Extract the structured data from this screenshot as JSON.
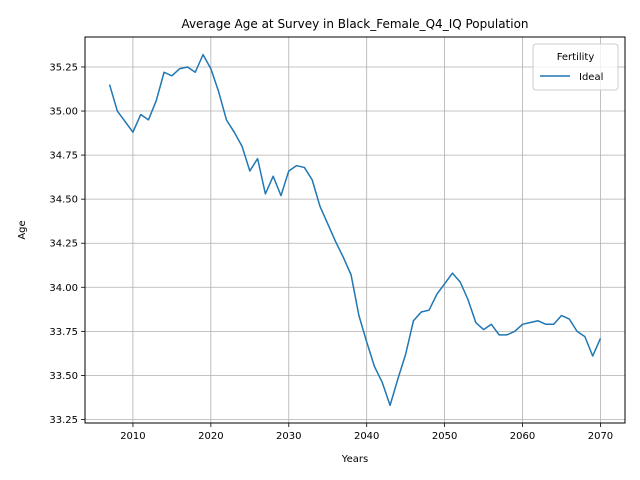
{
  "chart_data": {
    "type": "line",
    "title": "Average Age at Survey in Black_Female_Q4_IQ Population",
    "xlabel": "Years",
    "ylabel": "Age",
    "xlim": [
      2003.85,
      2073.15
    ],
    "ylim": [
      33.23,
      35.42
    ],
    "x_ticks": [
      2010,
      2020,
      2030,
      2040,
      2050,
      2060,
      2070
    ],
    "x_tick_labels": [
      "2010",
      "2020",
      "2030",
      "2040",
      "2050",
      "2060",
      "2070"
    ],
    "y_ticks": [
      33.25,
      33.5,
      33.75,
      34.0,
      34.25,
      34.5,
      34.75,
      35.0,
      35.25
    ],
    "y_tick_labels": [
      "33.25",
      "33.50",
      "33.75",
      "34.00",
      "34.25",
      "34.50",
      "34.75",
      "35.00",
      "35.25"
    ],
    "grid": true,
    "legend": {
      "title": "Fertility",
      "placement": "top-right"
    },
    "series": [
      {
        "name": "Ideal",
        "color": "#1f77b4",
        "x": [
          2007,
          2008,
          2009,
          2010,
          2011,
          2012,
          2013,
          2014,
          2015,
          2016,
          2017,
          2018,
          2019,
          2020,
          2021,
          2022,
          2023,
          2024,
          2025,
          2026,
          2027,
          2028,
          2029,
          2030,
          2031,
          2032,
          2033,
          2034,
          2035,
          2036,
          2037,
          2038,
          2039,
          2040,
          2041,
          2042,
          2043,
          2044,
          2045,
          2046,
          2047,
          2048,
          2049,
          2050,
          2051,
          2052,
          2053,
          2054,
          2055,
          2056,
          2057,
          2058,
          2059,
          2060,
          2061,
          2062,
          2063,
          2064,
          2065,
          2066,
          2067,
          2068,
          2069,
          2070
        ],
        "values": [
          35.15,
          35.0,
          34.94,
          34.88,
          34.98,
          34.95,
          35.06,
          35.22,
          35.2,
          35.24,
          35.25,
          35.22,
          35.32,
          35.24,
          35.11,
          34.95,
          34.88,
          34.8,
          34.66,
          34.73,
          34.53,
          34.63,
          34.52,
          34.66,
          34.69,
          34.68,
          34.61,
          34.46,
          34.36,
          34.26,
          34.17,
          34.07,
          33.84,
          33.69,
          33.55,
          33.46,
          33.33,
          33.48,
          33.62,
          33.81,
          33.86,
          33.87,
          33.96,
          34.02,
          34.08,
          34.03,
          33.93,
          33.8,
          33.76,
          33.79,
          33.73,
          33.73,
          33.75,
          33.79,
          33.8,
          33.81,
          33.79,
          33.79,
          33.84,
          33.82,
          33.75,
          33.72,
          33.61,
          33.71
        ]
      }
    ]
  }
}
